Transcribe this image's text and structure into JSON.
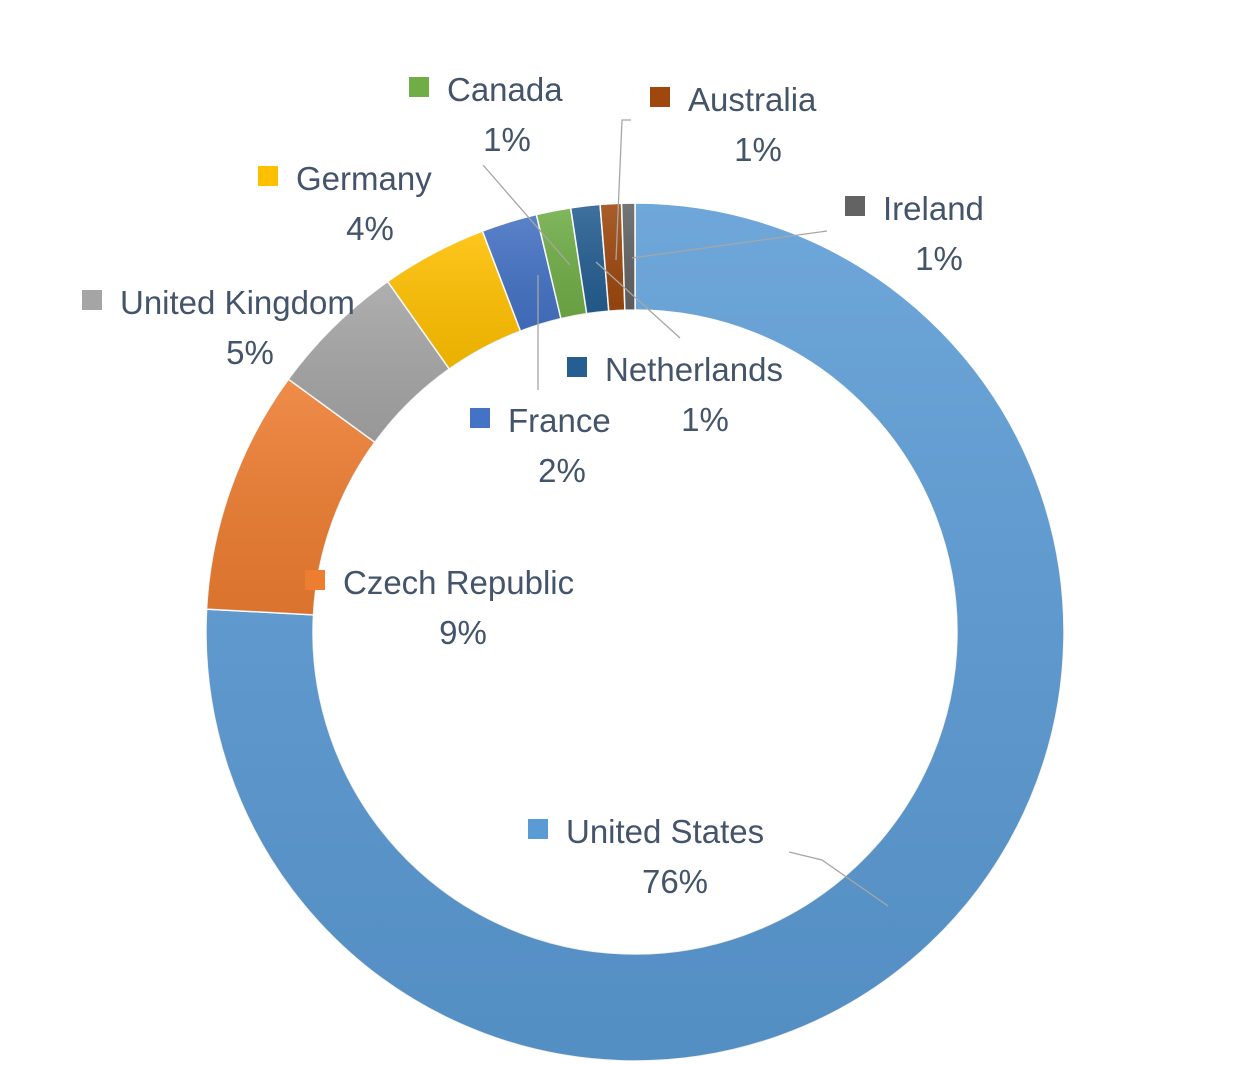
{
  "chart_data": {
    "type": "pie",
    "variant": "donut",
    "title": "",
    "slices": [
      {
        "name": "United States",
        "label": "76%",
        "value": 76.0,
        "color": "#5b9bd5",
        "swatch": "#5b9bd5"
      },
      {
        "name": "Czech Republic",
        "label": "9%",
        "value": 9.2,
        "color": "#ed7d31",
        "swatch": "#ed7d31"
      },
      {
        "name": "United Kingdom",
        "label": "5%",
        "value": 5.2,
        "color": "#a5a5a5",
        "swatch": "#a5a5a5"
      },
      {
        "name": "Germany",
        "label": "4%",
        "value": 4.0,
        "color": "#ffc000",
        "swatch": "#ffc000"
      },
      {
        "name": "France",
        "label": "2%",
        "value": 2.1,
        "color": "#4472c4",
        "swatch": "#4472c4"
      },
      {
        "name": "Canada",
        "label": "1%",
        "value": 1.3,
        "color": "#70ad47",
        "swatch": "#70ad47"
      },
      {
        "name": "Netherlands",
        "label": "1%",
        "value": 1.1,
        "color": "#255e91",
        "swatch": "#255e91"
      },
      {
        "name": "Australia",
        "label": "1%",
        "value": 0.8,
        "color": "#9e480e",
        "swatch": "#9e480e"
      },
      {
        "name": "Ireland",
        "label": "1%",
        "value": 0.5,
        "color": "#636363",
        "swatch": "#636363"
      }
    ],
    "legend": "none",
    "data_labels": "category name and percentage"
  }
}
